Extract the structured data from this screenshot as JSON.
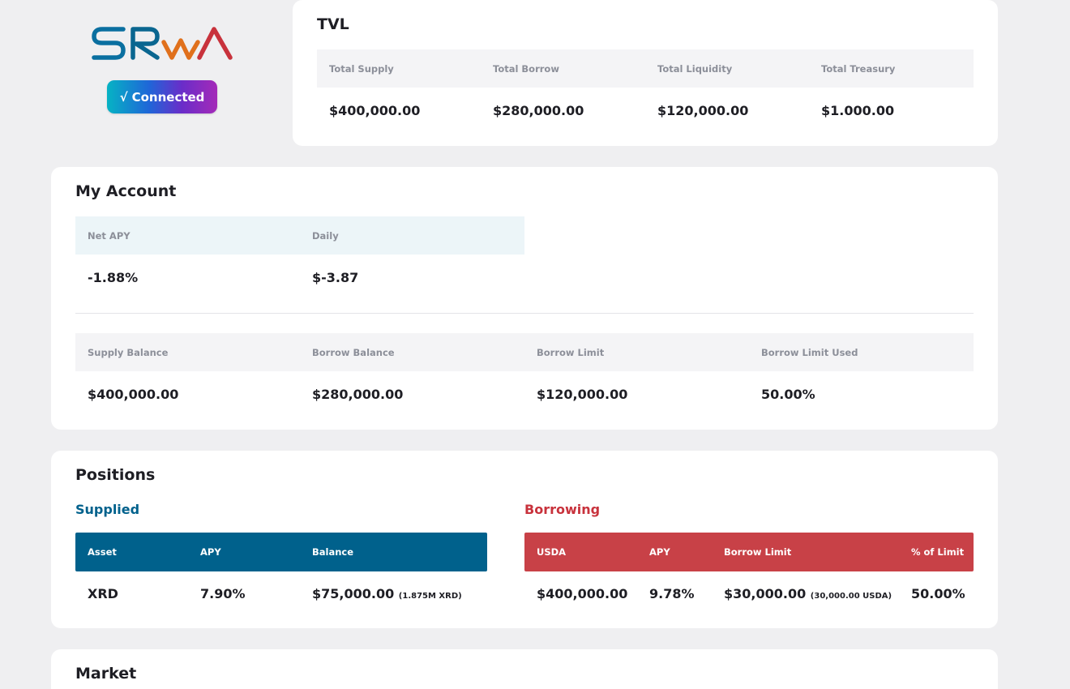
{
  "brand": {
    "logo_text": "SRWA",
    "connect_button": {
      "check_glyph": "√",
      "label": "Connected"
    },
    "colors": {
      "blue": "#00618c",
      "red": "#c8323c",
      "orange": "#e8731a"
    }
  },
  "tvl": {
    "title": "TVL",
    "headers": [
      "Total Supply",
      "Total Borrow",
      "Total Liquidity",
      "Total Treasury"
    ],
    "values": [
      "$400,000.00",
      "$280,000.00",
      "$120,000.00",
      "$1.000.00"
    ]
  },
  "account": {
    "title": "My Account",
    "apy_headers": [
      "Net APY",
      "Daily"
    ],
    "apy_values": [
      "-1.88%",
      "$-3.87"
    ],
    "balance_headers": [
      "Supply Balance",
      "Borrow Balance",
      "Borrow Limit",
      "Borrow Limit Used"
    ],
    "balance_values": [
      "$400,000.00",
      "$280,000.00",
      "$120,000.00",
      "50.00%"
    ]
  },
  "positions": {
    "title": "Positions",
    "supplied": {
      "title": "Supplied",
      "headers": [
        "Asset",
        "APY",
        "Balance"
      ],
      "row": {
        "asset": "XRD",
        "apy": "7.90%",
        "balance": "$75,000.00",
        "balance_note": "(1.875M XRD)"
      }
    },
    "borrowing": {
      "title": "Borrowing",
      "headers": [
        "USDA",
        "APY",
        "Borrow Limit",
        "% of Limit"
      ],
      "row": {
        "usda": "$400,000.00",
        "apy": "9.78%",
        "limit": "$30,000.00",
        "limit_note": "(30,000.00 USDA)",
        "percent": "50.00%"
      }
    }
  },
  "market": {
    "title": "Market"
  }
}
